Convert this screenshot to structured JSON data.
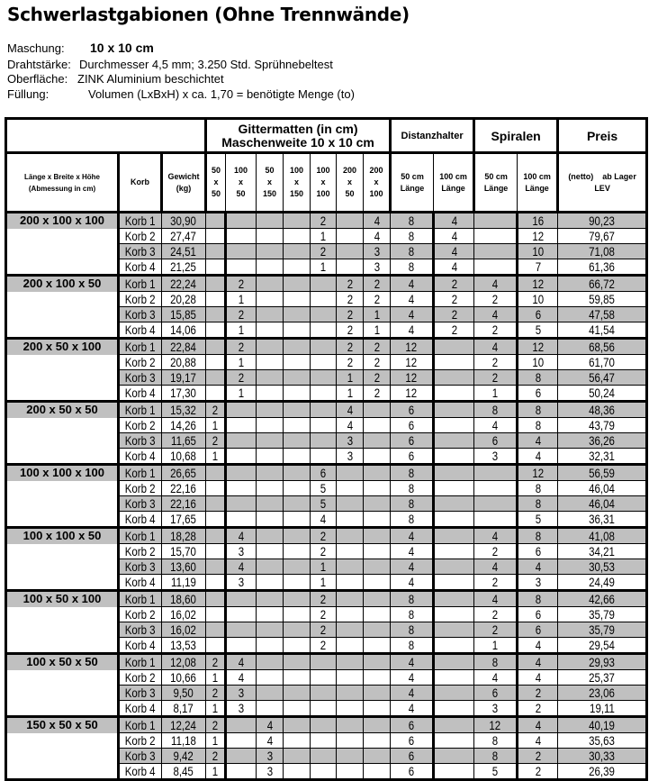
{
  "title": "Schwerlastgabionen (Ohne Trennwände)",
  "info": {
    "maschung_label": "Maschung:",
    "maschung_value": "10 x 10 cm",
    "draht_label": "Drahtstärke:",
    "draht_value": "Durchmesser 4,5 mm; 3.250 Std. Sprühnebeltest",
    "oberflaeche_label": "Oberfläche:",
    "oberflaeche_value": "ZINK Aluminium beschichtet",
    "fuellung_label": "Füllung:",
    "fuellung_value": "Volumen (LxBxH) x ca. 1,70 = benötigte Menge (to)"
  },
  "colors": {
    "row_shade": "#c0c0c0"
  },
  "table": {
    "header_top": {
      "gittermatten_1": "Gittermatten (in cm)",
      "gittermatten_2": "Maschenweite 10 x 10 cm",
      "distanzhalter": "Distanzhalter",
      "spiralen": "Spiralen",
      "preis": "Preis"
    },
    "header": {
      "dim_1": "Länge x Breite x Höhe",
      "dim_2": "(Abmessung in cm)",
      "korb": "Korb",
      "gewicht_1": "Gewicht",
      "gewicht_2": "(kg)",
      "matten": [
        [
          "50",
          "x",
          "50"
        ],
        [
          "100",
          "x",
          "50"
        ],
        [
          "50",
          "x",
          "150"
        ],
        [
          "100",
          "x",
          "150"
        ],
        [
          "100",
          "x",
          "100"
        ],
        [
          "200",
          "x",
          "50"
        ],
        [
          "200",
          "x",
          "100"
        ]
      ],
      "dist_50": [
        "50 cm",
        "Länge"
      ],
      "dist_100": [
        "100 cm",
        "Länge"
      ],
      "spir_50": [
        "50 cm",
        "Länge"
      ],
      "spir_100": [
        "100 cm",
        "Länge"
      ],
      "preis_1": "(netto)    ab Lager",
      "preis_2": "LEV"
    },
    "groups": [
      {
        "dim": "200 x 100 x 100",
        "rows": [
          [
            "Korb 1",
            "30,90",
            "",
            "",
            "",
            "",
            "2",
            "",
            "4",
            "8",
            "4",
            "",
            "16",
            "90,23"
          ],
          [
            "Korb 2",
            "27,47",
            "",
            "",
            "",
            "",
            "1",
            "",
            "4",
            "8",
            "4",
            "",
            "12",
            "79,67"
          ],
          [
            "Korb 3",
            "24,51",
            "",
            "",
            "",
            "",
            "2",
            "",
            "3",
            "8",
            "4",
            "",
            "10",
            "71,08"
          ],
          [
            "Korb 4",
            "21,25",
            "",
            "",
            "",
            "",
            "1",
            "",
            "3",
            "8",
            "4",
            "",
            "7",
            "61,36"
          ]
        ]
      },
      {
        "dim": "200 x 100 x 50",
        "rows": [
          [
            "Korb 1",
            "22,24",
            "",
            "2",
            "",
            "",
            "",
            "2",
            "2",
            "4",
            "2",
            "4",
            "12",
            "66,72"
          ],
          [
            "Korb 2",
            "20,28",
            "",
            "1",
            "",
            "",
            "",
            "2",
            "2",
            "4",
            "2",
            "2",
            "10",
            "59,85"
          ],
          [
            "Korb 3",
            "15,85",
            "",
            "2",
            "",
            "",
            "",
            "2",
            "1",
            "4",
            "2",
            "4",
            "6",
            "47,58"
          ],
          [
            "Korb 4",
            "14,06",
            "",
            "1",
            "",
            "",
            "",
            "2",
            "1",
            "4",
            "2",
            "2",
            "5",
            "41,54"
          ]
        ]
      },
      {
        "dim": "200 x 50 x 100",
        "rows": [
          [
            "Korb 1",
            "22,84",
            "",
            "2",
            "",
            "",
            "",
            "2",
            "2",
            "12",
            "",
            "4",
            "12",
            "68,56"
          ],
          [
            "Korb 2",
            "20,88",
            "",
            "1",
            "",
            "",
            "",
            "2",
            "2",
            "12",
            "",
            "2",
            "10",
            "61,70"
          ],
          [
            "Korb 3",
            "19,17",
            "",
            "2",
            "",
            "",
            "",
            "1",
            "2",
            "12",
            "",
            "2",
            "8",
            "56,47"
          ],
          [
            "Korb 4",
            "17,30",
            "",
            "1",
            "",
            "",
            "",
            "1",
            "2",
            "12",
            "",
            "1",
            "6",
            "50,24"
          ]
        ]
      },
      {
        "dim": "200 x 50 x 50",
        "rows": [
          [
            "Korb 1",
            "15,32",
            "2",
            "",
            "",
            "",
            "",
            "4",
            "",
            "6",
            "",
            "8",
            "8",
            "48,36"
          ],
          [
            "Korb 2",
            "14,26",
            "1",
            "",
            "",
            "",
            "",
            "4",
            "",
            "6",
            "",
            "4",
            "8",
            "43,79"
          ],
          [
            "Korb 3",
            "11,65",
            "2",
            "",
            "",
            "",
            "",
            "3",
            "",
            "6",
            "",
            "6",
            "4",
            "36,26"
          ],
          [
            "Korb 4",
            "10,68",
            "1",
            "",
            "",
            "",
            "",
            "3",
            "",
            "6",
            "",
            "3",
            "4",
            "32,31"
          ]
        ]
      },
      {
        "dim": "100 x 100 x 100",
        "rows": [
          [
            "Korb 1",
            "26,65",
            "",
            "",
            "",
            "",
            "6",
            "",
            "",
            "8",
            "",
            "",
            "12",
            "56,59"
          ],
          [
            "Korb 2",
            "22,16",
            "",
            "",
            "",
            "",
            "5",
            "",
            "",
            "8",
            "",
            "",
            "8",
            "46,04"
          ],
          [
            "Korb 3",
            "22,16",
            "",
            "",
            "",
            "",
            "5",
            "",
            "",
            "8",
            "",
            "",
            "8",
            "46,04"
          ],
          [
            "Korb 4",
            "17,65",
            "",
            "",
            "",
            "",
            "4",
            "",
            "",
            "8",
            "",
            "",
            "5",
            "36,31"
          ]
        ]
      },
      {
        "dim": "100 x 100 x 50",
        "rows": [
          [
            "Korb 1",
            "18,28",
            "",
            "4",
            "",
            "",
            "2",
            "",
            "",
            "4",
            "",
            "4",
            "8",
            "41,08"
          ],
          [
            "Korb 2",
            "15,70",
            "",
            "3",
            "",
            "",
            "2",
            "",
            "",
            "4",
            "",
            "2",
            "6",
            "34,21"
          ],
          [
            "Korb 3",
            "13,60",
            "",
            "4",
            "",
            "",
            "1",
            "",
            "",
            "4",
            "",
            "4",
            "4",
            "30,53"
          ],
          [
            "Korb 4",
            "11,19",
            "",
            "3",
            "",
            "",
            "1",
            "",
            "",
            "4",
            "",
            "2",
            "3",
            "24,49"
          ]
        ]
      },
      {
        "dim": "100 x 50 x 100",
        "rows": [
          [
            "Korb 1",
            "18,60",
            "",
            "",
            "",
            "",
            "2",
            "",
            "",
            "8",
            "",
            "4",
            "8",
            "42,66"
          ],
          [
            "Korb 2",
            "16,02",
            "",
            "",
            "",
            "",
            "2",
            "",
            "",
            "8",
            "",
            "2",
            "6",
            "35,79"
          ],
          [
            "Korb 3",
            "16,02",
            "",
            "",
            "",
            "",
            "2",
            "",
            "",
            "8",
            "",
            "2",
            "6",
            "35,79"
          ],
          [
            "Korb 4",
            "13,53",
            "",
            "",
            "",
            "",
            "2",
            "",
            "",
            "8",
            "",
            "1",
            "4",
            "29,54"
          ]
        ]
      },
      {
        "dim": "100 x 50 x 50",
        "rows": [
          [
            "Korb 1",
            "12,08",
            "2",
            "4",
            "",
            "",
            "",
            "",
            "",
            "4",
            "",
            "8",
            "4",
            "29,93"
          ],
          [
            "Korb 2",
            "10,66",
            "1",
            "4",
            "",
            "",
            "",
            "",
            "",
            "4",
            "",
            "4",
            "4",
            "25,37"
          ],
          [
            "Korb 3",
            "9,50",
            "2",
            "3",
            "",
            "",
            "",
            "",
            "",
            "4",
            "",
            "6",
            "2",
            "23,06"
          ],
          [
            "Korb 4",
            "8,17",
            "1",
            "3",
            "",
            "",
            "",
            "",
            "",
            "4",
            "",
            "3",
            "2",
            "19,11"
          ]
        ]
      },
      {
        "dim": "150 x 50 x 50",
        "rows": [
          [
            "Korb 1",
            "12,24",
            "2",
            "",
            "4",
            "",
            "",
            "",
            "",
            "6",
            "",
            "12",
            "4",
            "40,19"
          ],
          [
            "Korb 2",
            "11,18",
            "1",
            "",
            "4",
            "",
            "",
            "",
            "",
            "6",
            "",
            "8",
            "4",
            "35,63"
          ],
          [
            "Korb 3",
            "9,42",
            "2",
            "",
            "3",
            "",
            "",
            "",
            "",
            "6",
            "",
            "8",
            "2",
            "30,33"
          ],
          [
            "Korb 4",
            "8,45",
            "1",
            "",
            "3",
            "",
            "",
            "",
            "",
            "6",
            "",
            "5",
            "2",
            "26,39"
          ]
        ]
      }
    ]
  }
}
